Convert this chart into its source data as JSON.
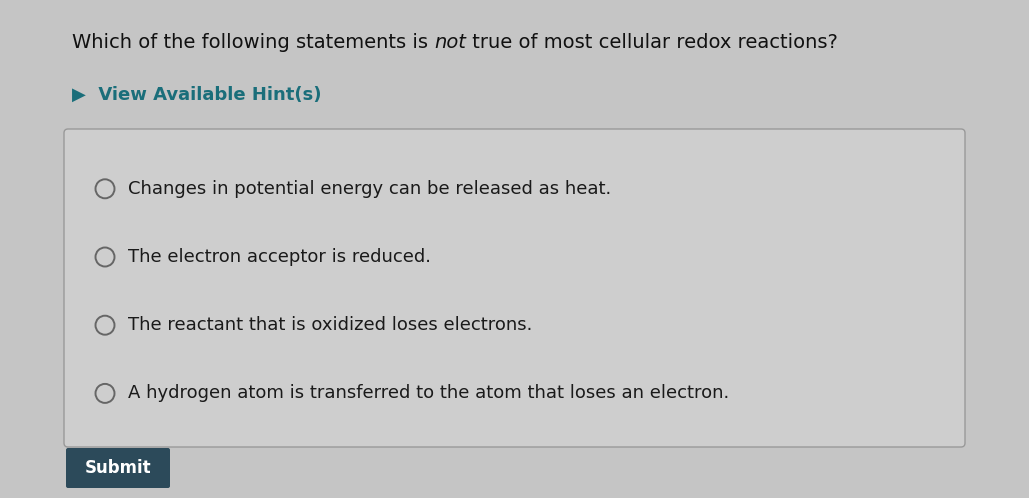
{
  "background_color": "#c5c5c5",
  "question_text_normal1": "Which of the following statements is ",
  "question_text_italic": "not",
  "question_text_normal2": " true of most cellular redox reactions?",
  "hint_text": "▶  View Available Hint(s)",
  "hint_color": "#1a6e7a",
  "options": [
    "Changes in potential energy can be released as heat.",
    "The electron acceptor is reduced.",
    "The reactant that is oxidized loses electrons.",
    "A hydrogen atom is transferred to the atom that loses an electron."
  ],
  "option_text_color": "#1a1a1a",
  "box_background": "#cecece",
  "box_edge_color": "#999999",
  "circle_edge_color": "#666666",
  "circle_face_color": "#cecece",
  "submit_bg": "#2c4a5a",
  "submit_text": "Submit",
  "submit_text_color": "#ffffff",
  "question_color": "#111111",
  "font_size_question": 14,
  "font_size_options": 13,
  "font_size_hint": 13,
  "font_size_submit": 12
}
